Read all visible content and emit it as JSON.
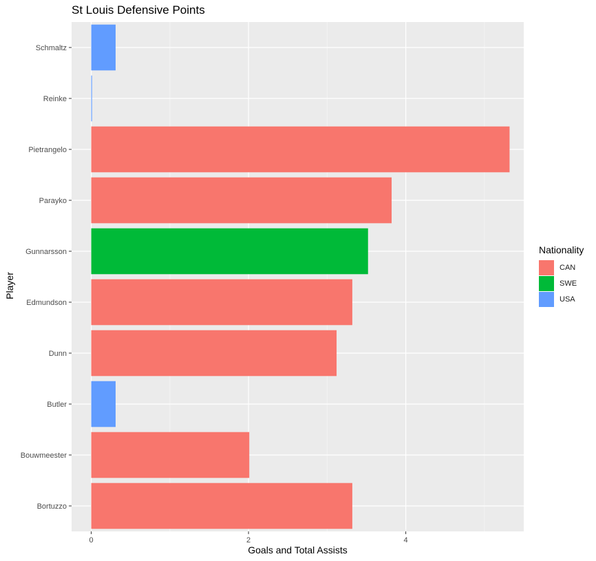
{
  "chart_data": {
    "type": "bar",
    "orientation": "horizontal",
    "title": "St Louis Defensive Points",
    "xlabel": "Goals and Total Assists",
    "ylabel": "Player",
    "xlim": [
      -0.25,
      5.5
    ],
    "xticks": [
      0,
      2,
      4
    ],
    "grid": true,
    "legend": {
      "title": "Nationality",
      "placement": "right",
      "entries": [
        {
          "label": "CAN",
          "color": "#F8766D"
        },
        {
          "label": "SWE",
          "color": "#00BA38"
        },
        {
          "label": "USA",
          "color": "#619CFF"
        }
      ]
    },
    "categories": [
      "Schmaltz",
      "Reinke",
      "Pietrangelo",
      "Parayko",
      "Gunnarsson",
      "Edmundson",
      "Dunn",
      "Butler",
      "Bouwmeester",
      "Bortuzzo"
    ],
    "values": [
      0.31,
      0.01,
      5.32,
      3.82,
      3.52,
      3.32,
      3.12,
      0.31,
      2.01,
      3.32
    ],
    "nationality": [
      "USA",
      "USA",
      "CAN",
      "CAN",
      "SWE",
      "CAN",
      "CAN",
      "USA",
      "CAN",
      "CAN"
    ]
  }
}
